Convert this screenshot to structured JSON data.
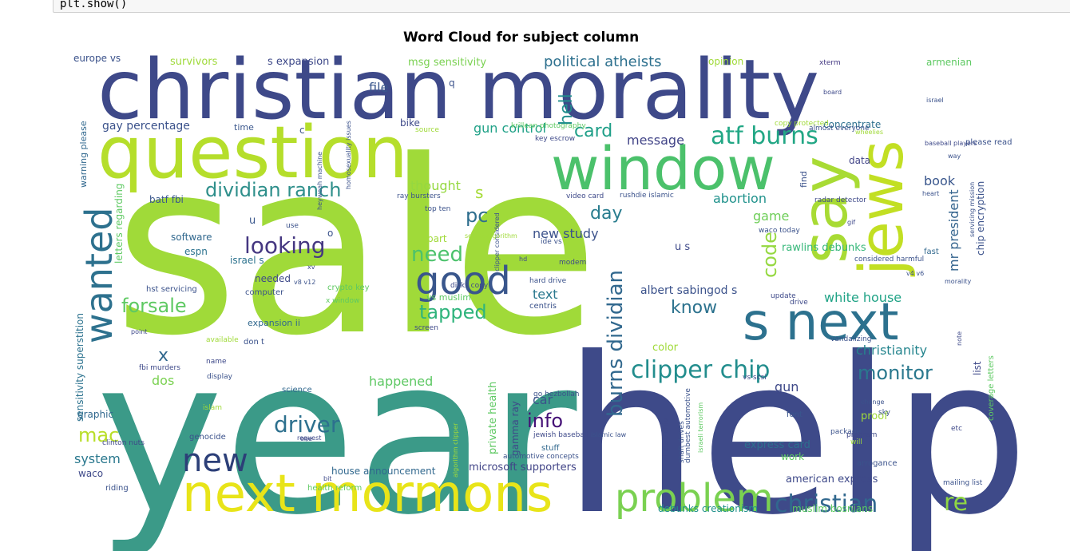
{
  "code_cell": {
    "text": "plt.show()"
  },
  "chart_data": {
    "type": "wordcloud",
    "title": "Word Cloud for subject column",
    "background": "#ffffff",
    "colormap": "viridis",
    "words": [
      {
        "text": "sale",
        "color": "#a0da39"
      },
      {
        "text": "year",
        "color": "#3b9a88"
      },
      {
        "text": "help",
        "color": "#3e4a89"
      },
      {
        "text": "christian morality",
        "color": "#3e4989"
      },
      {
        "text": "question",
        "color": "#b5de2b"
      },
      {
        "text": "window",
        "color": "#4bc16b"
      },
      {
        "text": "next mormons",
        "color": "#e8e419"
      },
      {
        "text": "s next",
        "color": "#2c718e"
      },
      {
        "text": "say",
        "color": "#a8db34"
      },
      {
        "text": "jews",
        "color": "#c2df23"
      },
      {
        "text": "problem",
        "color": "#7ad151"
      },
      {
        "text": "good",
        "color": "#39568c"
      },
      {
        "text": "wanted",
        "color": "#2d718e"
      },
      {
        "text": "new",
        "color": "#2c3f78"
      },
      {
        "text": "clipper chip",
        "color": "#228d8d"
      },
      {
        "text": "christian",
        "color": "#31688e"
      },
      {
        "text": "re",
        "color": "#8fd744"
      },
      {
        "text": "dividian ranch",
        "color": "#2e8f8b"
      },
      {
        "text": "atf burns",
        "color": "#22a785"
      },
      {
        "text": "looking",
        "color": "#453781"
      },
      {
        "text": "monitor",
        "color": "#2a788e"
      },
      {
        "text": "need",
        "color": "#4cc26c"
      },
      {
        "text": "tapped",
        "color": "#2fb47c"
      },
      {
        "text": "forsale",
        "color": "#5ec962"
      },
      {
        "text": "driver",
        "color": "#2d708e"
      },
      {
        "text": "burns dividian",
        "color": "#31688e"
      },
      {
        "text": "know",
        "color": "#2c728e"
      },
      {
        "text": "info",
        "color": "#440f76"
      },
      {
        "text": "card",
        "color": "#1f9f88"
      },
      {
        "text": "pc",
        "color": "#2e6e8e"
      },
      {
        "text": "code",
        "color": "#95d840"
      },
      {
        "text": "hell",
        "color": "#218f8d"
      },
      {
        "text": "mac",
        "color": "#b8de29"
      },
      {
        "text": "day",
        "color": "#287c8e"
      },
      {
        "text": "s",
        "color": "#a5db36"
      },
      {
        "text": "political atheists",
        "color": "#2d708e"
      },
      {
        "text": "message",
        "color": "#414487"
      },
      {
        "text": "gun control",
        "color": "#1fa187"
      },
      {
        "text": "abortion",
        "color": "#20928c"
      },
      {
        "text": "white house",
        "color": "#20a386"
      },
      {
        "text": "christianity",
        "color": "#25858e"
      },
      {
        "text": "happened",
        "color": "#5dc863"
      },
      {
        "text": "thought",
        "color": "#95d840"
      },
      {
        "text": "new study",
        "color": "#3b528b"
      },
      {
        "text": "mr president",
        "color": "#33638d"
      },
      {
        "text": "book",
        "color": "#39568c"
      },
      {
        "text": "game",
        "color": "#6ece58"
      },
      {
        "text": "gun",
        "color": "#3e4989"
      },
      {
        "text": "x",
        "color": "#31688e"
      },
      {
        "text": "dos",
        "color": "#7ad151"
      },
      {
        "text": "system",
        "color": "#2a788e"
      },
      {
        "text": "text",
        "color": "#2a788e"
      },
      {
        "text": "car",
        "color": "#3b528b"
      },
      {
        "text": "file",
        "color": "#39568c"
      },
      {
        "text": "gay percentage",
        "color": "#3b528b"
      },
      {
        "text": "batf fbi",
        "color": "#39568c"
      },
      {
        "text": "software",
        "color": "#31688e"
      },
      {
        "text": "espn",
        "color": "#2c728e"
      },
      {
        "text": "israel s",
        "color": "#2c728e"
      },
      {
        "text": "needed",
        "color": "#3e4989"
      },
      {
        "text": "concentrate",
        "color": "#2d708e"
      },
      {
        "text": "rawlins debunks",
        "color": "#35b779"
      },
      {
        "text": "albert sabingod s",
        "color": "#3b528b"
      },
      {
        "text": "american express",
        "color": "#3e4989"
      },
      {
        "text": "express card",
        "color": "#2d708e"
      },
      {
        "text": "microsoft supporters",
        "color": "#414487"
      },
      {
        "text": "house announcement",
        "color": "#31688e"
      },
      {
        "text": "debunks creationism",
        "color": "#21918c"
      },
      {
        "text": "muslim bosnians",
        "color": "#5ec962"
      },
      {
        "text": "chip encryption",
        "color": "#3b528b"
      },
      {
        "text": "europe vs",
        "color": "#3b528b"
      },
      {
        "text": "survivors",
        "color": "#9fda3a"
      },
      {
        "text": "s expansion",
        "color": "#3e4989"
      },
      {
        "text": "msg sensitivity",
        "color": "#7ad151"
      },
      {
        "text": "opinion",
        "color": "#a0da39"
      },
      {
        "text": "armenian",
        "color": "#5ec962"
      },
      {
        "text": "xterm",
        "color": "#443983"
      },
      {
        "text": "warning please",
        "color": "#31688e"
      },
      {
        "text": "time",
        "color": "#39568c"
      },
      {
        "text": "c",
        "color": "#3b528b"
      },
      {
        "text": "bike",
        "color": "#3e4989"
      },
      {
        "text": "graphic",
        "color": "#31688e"
      },
      {
        "text": "waco",
        "color": "#3e4989"
      },
      {
        "text": "work",
        "color": "#5ec962"
      },
      {
        "text": "proof",
        "color": "#a0da39"
      },
      {
        "text": "data",
        "color": "#414487"
      },
      {
        "text": "please read",
        "color": "#3b528b"
      },
      {
        "text": "letters regarding",
        "color": "#5ec962"
      },
      {
        "text": "sensitivity superstition",
        "color": "#2c728e"
      },
      {
        "text": "coverage letters",
        "color": "#5ec962"
      },
      {
        "text": "private health",
        "color": "#5ec962"
      },
      {
        "text": "gamma ray",
        "color": "#3e4989"
      },
      {
        "text": "vs muslim",
        "color": "#5ec962"
      },
      {
        "text": "color",
        "color": "#a0da39"
      },
      {
        "text": "part",
        "color": "#a0da39"
      },
      {
        "text": "o",
        "color": "#3b528b"
      },
      {
        "text": "u",
        "color": "#39568c"
      },
      {
        "text": "q",
        "color": "#3b528b"
      },
      {
        "text": "u s",
        "color": "#3e4989"
      },
      {
        "text": "fast",
        "color": "#31688e"
      },
      {
        "text": "list",
        "color": "#3e4989"
      },
      {
        "text": "find",
        "color": "#3b528b"
      },
      {
        "text": "riding",
        "color": "#3b528b"
      },
      {
        "text": "expansion ii",
        "color": "#31688e"
      },
      {
        "text": "don t",
        "color": "#3b528b"
      },
      {
        "text": "science",
        "color": "#31688e"
      },
      {
        "text": "crypto key",
        "color": "#5ec962"
      },
      {
        "text": "genocide",
        "color": "#3b528b"
      },
      {
        "text": "font",
        "color": "#39568c"
      },
      {
        "text": "stuff",
        "color": "#31688e"
      },
      {
        "text": "computer",
        "color": "#3b528b"
      },
      {
        "text": "hst servicing",
        "color": "#3b528b"
      },
      {
        "text": "krillean photography",
        "color": "#5ec962"
      },
      {
        "text": "source",
        "color": "#a0da39"
      },
      {
        "text": "copy protected",
        "color": "#a0da39"
      },
      {
        "text": "baseball players",
        "color": "#3e4989"
      },
      {
        "text": "video card",
        "color": "#3e4989"
      },
      {
        "text": "rushdie islamic",
        "color": "#3b528b"
      },
      {
        "text": "radar detector",
        "color": "#3e4989"
      },
      {
        "text": "waco today",
        "color": "#3b528b"
      },
      {
        "text": "considered harmful",
        "color": "#3b528b"
      },
      {
        "text": "update",
        "color": "#3e4989"
      },
      {
        "text": "drive",
        "color": "#3e4989"
      },
      {
        "text": "centris",
        "color": "#3b528b"
      },
      {
        "text": "hard drive",
        "color": "#3b528b"
      },
      {
        "text": "modem",
        "color": "#3e4989"
      },
      {
        "text": "disks copy",
        "color": "#3e4989"
      },
      {
        "text": "screen",
        "color": "#3e4989"
      },
      {
        "text": "go hezbollah",
        "color": "#3b528b"
      },
      {
        "text": "package",
        "color": "#3b528b"
      },
      {
        "text": "program",
        "color": "#3e4989"
      },
      {
        "text": "arrogance",
        "color": "#3b528b"
      },
      {
        "text": "mailing list",
        "color": "#3b528b"
      },
      {
        "text": "health reform",
        "color": "#5ec962"
      },
      {
        "text": "available",
        "color": "#a0da39"
      },
      {
        "text": "name",
        "color": "#3e4989"
      },
      {
        "text": "display",
        "color": "#3b528b"
      },
      {
        "text": "islam",
        "color": "#a0da39"
      },
      {
        "text": "clinton nuts",
        "color": "#3e4989"
      },
      {
        "text": "fbi murders",
        "color": "#3e4989"
      },
      {
        "text": "top ten",
        "color": "#3b528b"
      },
      {
        "text": "ray bursters",
        "color": "#3b528b"
      },
      {
        "text": "ide vs",
        "color": "#3b528b"
      },
      {
        "text": "key escrow",
        "color": "#3e4989"
      },
      {
        "text": "almost everyone",
        "color": "#3b528b"
      },
      {
        "text": "vs scsi",
        "color": "#3e4989"
      },
      {
        "text": "shaft drives",
        "color": "#3b528b"
      },
      {
        "text": "wiretap chip",
        "color": "#3e4989"
      },
      {
        "text": "dumbest automotive",
        "color": "#3b528b"
      },
      {
        "text": "automotive concepts",
        "color": "#3b528b"
      },
      {
        "text": "jewish baseball",
        "color": "#3e4989"
      },
      {
        "text": "israeli terrorism",
        "color": "#5ec962"
      },
      {
        "text": "vandalizing",
        "color": "#3b528b"
      },
      {
        "text": "heart",
        "color": "#3b528b"
      },
      {
        "text": "change",
        "color": "#3b528b"
      },
      {
        "text": "sky",
        "color": "#3b528b"
      },
      {
        "text": "morality",
        "color": "#3b528b"
      },
      {
        "text": "v4 v6",
        "color": "#3b528b"
      },
      {
        "text": "v8 v12",
        "color": "#3b528b"
      },
      {
        "text": "x window",
        "color": "#5ec962"
      },
      {
        "text": "board",
        "color": "#3e4989"
      },
      {
        "text": "israel",
        "color": "#3b528b"
      },
      {
        "text": "way",
        "color": "#3b528b"
      },
      {
        "text": "gif",
        "color": "#3e4989"
      },
      {
        "text": "servicing mission",
        "color": "#3b528b"
      },
      {
        "text": "homosexuality issues",
        "color": "#3b528b"
      },
      {
        "text": "heyweah machine",
        "color": "#3b528b"
      },
      {
        "text": "clipper considered",
        "color": "#3b528b"
      },
      {
        "text": "secret algorithm",
        "color": "#a0da39"
      },
      {
        "text": "need help",
        "color": "#a0da39"
      },
      {
        "text": "use",
        "color": "#3b528b"
      },
      {
        "text": "point",
        "color": "#3e4989"
      },
      {
        "text": "algorithm clipper",
        "color": "#a0da39"
      },
      {
        "text": "xv",
        "color": "#3e4989"
      },
      {
        "text": "hd",
        "color": "#3e4989"
      },
      {
        "text": "wheelies",
        "color": "#a0da39"
      },
      {
        "text": "islamic law",
        "color": "#3b528b"
      },
      {
        "text": "note",
        "color": "#3e4989"
      },
      {
        "text": "bit",
        "color": "#3e4989"
      },
      {
        "text": "request",
        "color": "#3e4989"
      },
      {
        "text": "one",
        "color": "#3e4989"
      },
      {
        "text": "etc",
        "color": "#3e4989"
      },
      {
        "text": "will",
        "color": "#a0da39"
      },
      {
        "text": "jesus died",
        "color": "#5ec962"
      }
    ]
  }
}
